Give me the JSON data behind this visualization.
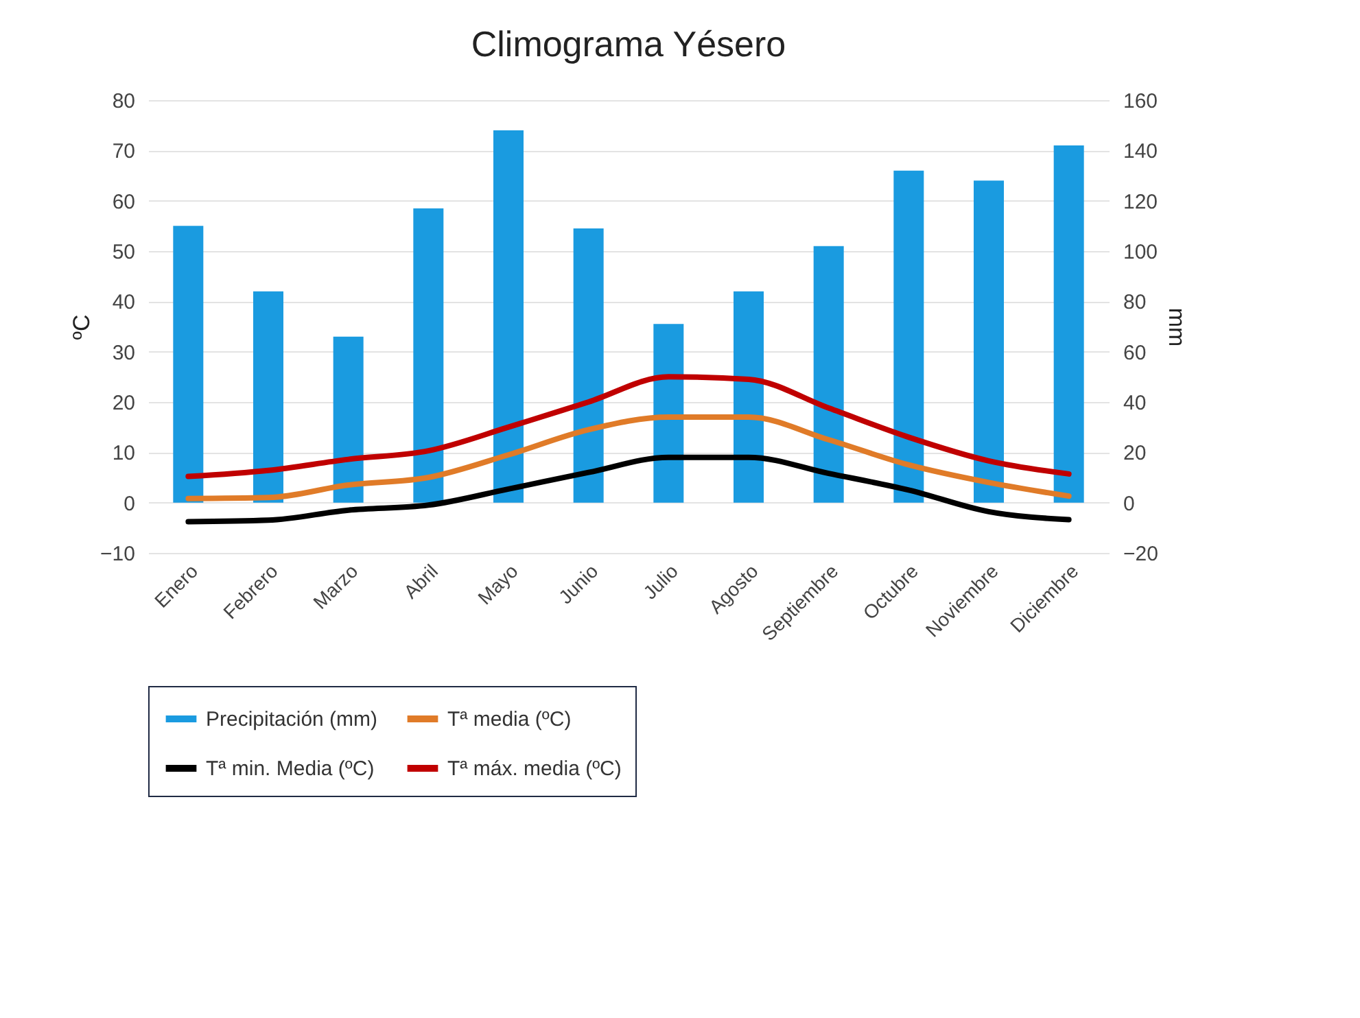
{
  "chart_data": {
    "type": "bar",
    "title": "Climograma Yésero",
    "ylabel": "ºC",
    "y2label": "mm",
    "categories": [
      "Enero",
      "Febrero",
      "Marzo",
      "Abril",
      "Mayo",
      "Junio",
      "Julio",
      "Agosto",
      "Septiembre",
      "Octubre",
      "Noviembre",
      "Diciembre"
    ],
    "series": [
      {
        "name": "Precipitación (mm)",
        "axis": "y2",
        "color": "#1a9be0",
        "values": [
          110,
          84,
          66,
          117,
          148,
          109,
          71,
          84,
          102,
          132,
          128,
          142
        ]
      },
      {
        "name": "Tª media (ºC)",
        "type": "line",
        "color": "#e07b28",
        "values": [
          0.8,
          1,
          3.5,
          5,
          9.5,
          14.5,
          17,
          17,
          12.5,
          7.5,
          4,
          1.3
        ]
      },
      {
        "name": "Tª min. Media (ºC)",
        "type": "line",
        "color": "#000000",
        "values": [
          -3.8,
          -3.5,
          -1.5,
          -0.5,
          2.7,
          6,
          9,
          9,
          5.8,
          2.5,
          -1.8,
          -3.4
        ]
      },
      {
        "name": "Tª máx. media (ºC)",
        "type": "line",
        "color": "#c00000",
        "values": [
          5.2,
          6.4,
          8.6,
          10.3,
          15,
          20,
          25,
          24.5,
          18.8,
          13,
          8.3,
          5.7
        ]
      }
    ],
    "ylim": [
      -10,
      80
    ],
    "yticks": [
      -10,
      0,
      10,
      20,
      30,
      40,
      50,
      60,
      70,
      80
    ],
    "y2lim": [
      -20,
      160
    ],
    "y2ticks": [
      -20,
      0,
      20,
      40,
      60,
      80,
      100,
      120,
      140,
      160
    ],
    "grid": "y",
    "legend": "bottom"
  }
}
